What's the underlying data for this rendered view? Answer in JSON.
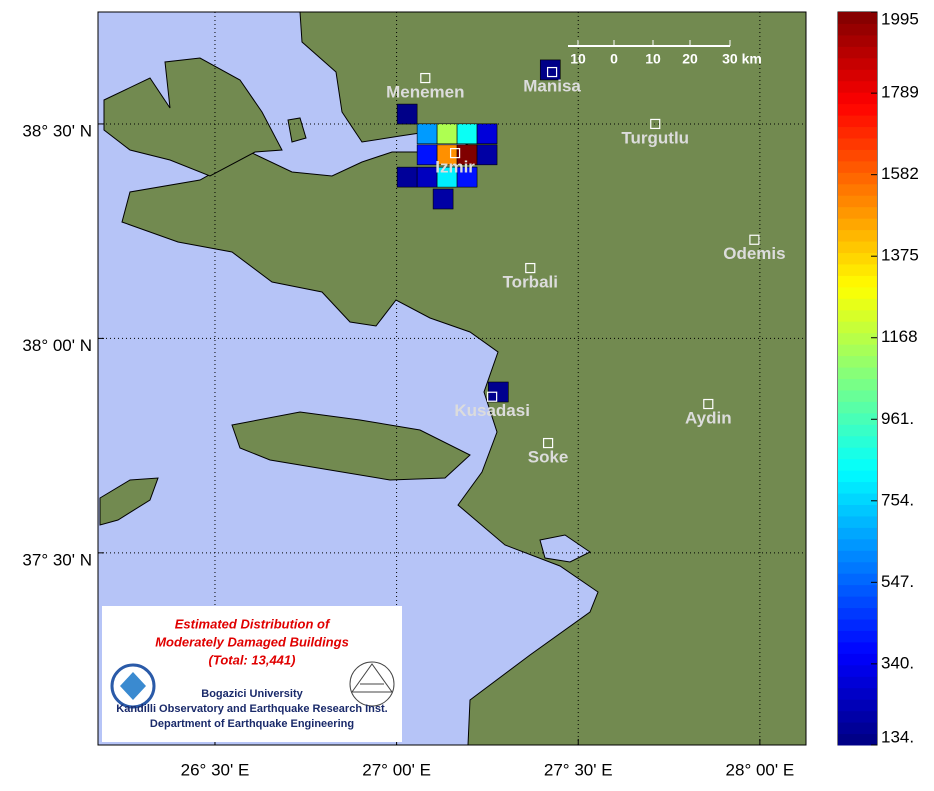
{
  "chart_data": {
    "type": "map",
    "xlim": [
      26.178,
      28.127
    ],
    "ylim": [
      37.052,
      38.761
    ],
    "xticks": [
      {
        "value": 26.5,
        "label": "26° 30' E"
      },
      {
        "value": 27.0,
        "label": "27° 00' E"
      },
      {
        "value": 27.5,
        "label": "27° 30' E"
      },
      {
        "value": 28.0,
        "label": "28° 00' E"
      }
    ],
    "yticks": [
      {
        "value": 38.5,
        "label": "38° 30' N"
      },
      {
        "value": 38.0,
        "label": "38° 00' N"
      },
      {
        "value": 37.5,
        "label": "37° 30' N"
      }
    ],
    "grid": true,
    "cities": [
      {
        "name": "Menemen",
        "lon": 27.079,
        "lat": 38.607
      },
      {
        "name": "Manisa",
        "lon": 27.428,
        "lat": 38.621
      },
      {
        "name": "Turgutlu",
        "lon": 27.712,
        "lat": 38.5
      },
      {
        "name": "Izmir",
        "lon": 27.161,
        "lat": 38.432
      },
      {
        "name": "Odemis",
        "lon": 27.985,
        "lat": 38.23
      },
      {
        "name": "Torbali",
        "lon": 27.368,
        "lat": 38.164
      },
      {
        "name": "Kusadasi",
        "lon": 27.263,
        "lat": 37.864
      },
      {
        "name": "Aydin",
        "lon": 27.858,
        "lat": 37.847
      },
      {
        "name": "Soke",
        "lon": 27.417,
        "lat": 37.756
      }
    ],
    "cells": [
      {
        "lon": 27.029,
        "lat": 38.523,
        "value": 150
      },
      {
        "lon": 27.084,
        "lat": 38.477,
        "value": 650
      },
      {
        "lon": 27.139,
        "lat": 38.477,
        "value": 1150
      },
      {
        "lon": 27.194,
        "lat": 38.477,
        "value": 850
      },
      {
        "lon": 27.249,
        "lat": 38.477,
        "value": 300
      },
      {
        "lon": 27.084,
        "lat": 38.428,
        "value": 400
      },
      {
        "lon": 27.139,
        "lat": 38.428,
        "value": 1500
      },
      {
        "lon": 27.194,
        "lat": 38.428,
        "value": 1995
      },
      {
        "lon": 27.249,
        "lat": 38.428,
        "value": 200
      },
      {
        "lon": 27.029,
        "lat": 38.376,
        "value": 180
      },
      {
        "lon": 27.084,
        "lat": 38.376,
        "value": 250
      },
      {
        "lon": 27.139,
        "lat": 38.376,
        "value": 800
      },
      {
        "lon": 27.194,
        "lat": 38.376,
        "value": 400
      },
      {
        "lon": 27.128,
        "lat": 38.325,
        "value": 200
      },
      {
        "lon": 27.423,
        "lat": 38.626,
        "value": 150
      },
      {
        "lon": 27.28,
        "lat": 37.875,
        "value": 160
      }
    ],
    "clim": [
      134,
      1995
    ],
    "colorbar_ticks": [
      {
        "value": 1995,
        "label": "1995"
      },
      {
        "value": 1789,
        "label": "1789"
      },
      {
        "value": 1582,
        "label": "1582"
      },
      {
        "value": 1375,
        "label": "1375"
      },
      {
        "value": 1168,
        "label": "1168"
      },
      {
        "value": 961,
        "label": "961."
      },
      {
        "value": 754,
        "label": "754."
      },
      {
        "value": 547,
        "label": "547."
      },
      {
        "value": 340,
        "label": "340."
      },
      {
        "value": 134,
        "label": "134."
      }
    ],
    "scale_labels": [
      "10",
      "0",
      "10",
      "20",
      "30 km"
    ],
    "legend": {
      "title_lines": [
        "Estimated Distribution of",
        "Moderately Damaged Buildings",
        "(Total: 13,441)"
      ],
      "institution_lines": [
        "Bogazici University",
        "Kandilli Observatory and Earthquake Research Inst.",
        "Department of Earthquake Engineering"
      ]
    }
  }
}
